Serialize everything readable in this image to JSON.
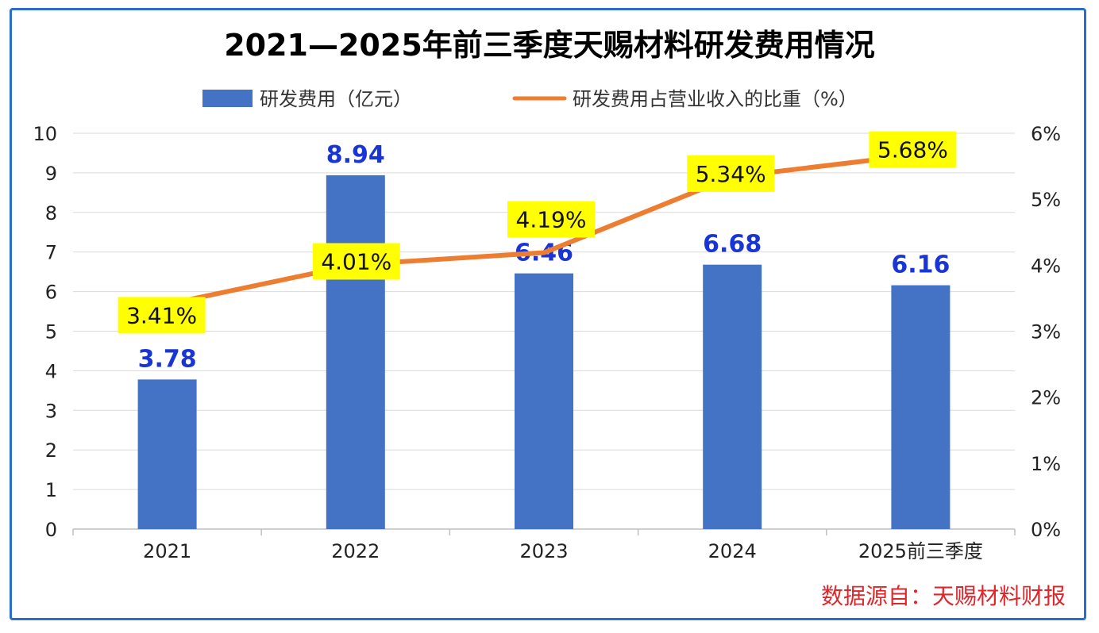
{
  "chart_data": {
    "type": "bar",
    "title": "2021—2025年前三季度天赐材料研发费用情况",
    "categories": [
      "2021",
      "2022",
      "2023",
      "2024",
      "2025前三季度"
    ],
    "series": [
      {
        "name": "研发费用（亿元）",
        "type": "bar",
        "axis": "left",
        "values": [
          3.78,
          8.94,
          6.46,
          6.68,
          6.16
        ],
        "labels": [
          "3.78",
          "8.94",
          "6.46",
          "6.68",
          "6.16"
        ],
        "color": "#4472c4",
        "label_color": "#1a35d6"
      },
      {
        "name": "研发费用占营业收入的比重（%）",
        "type": "line",
        "axis": "right",
        "values": [
          3.41,
          4.01,
          4.19,
          5.34,
          5.68
        ],
        "labels": [
          "3.41%",
          "4.01%",
          "4.19%",
          "5.34%",
          "5.68%"
        ],
        "color": "#ed7d31",
        "label_background": "#ffff00"
      }
    ],
    "y_left": {
      "min": 0,
      "max": 10,
      "ticks": [
        "0",
        "1",
        "2",
        "3",
        "4",
        "5",
        "6",
        "7",
        "8",
        "9",
        "10"
      ]
    },
    "y_right": {
      "min": 0,
      "max": 6,
      "ticks": [
        "0%",
        "1%",
        "2%",
        "3%",
        "4%",
        "5%",
        "6%"
      ]
    },
    "grid": true,
    "legend_position": "top-center",
    "source": "数据源自：天赐材料财报"
  },
  "colors": {
    "frame_border": "#2b6cd1",
    "gridline": "#d9d9d9",
    "source_text": "#e0262b"
  }
}
